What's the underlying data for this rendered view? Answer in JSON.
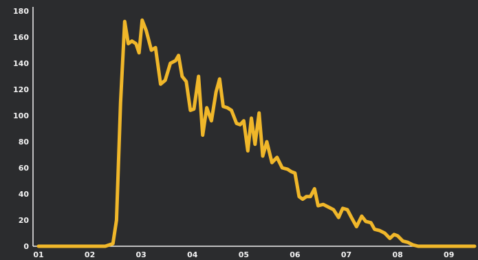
{
  "chart_data": {
    "type": "line",
    "title": "",
    "xlabel": "",
    "ylabel": "",
    "grid": false,
    "xlim": [
      1,
      9.5
    ],
    "ylim": [
      0,
      180
    ],
    "xticks": [
      {
        "value": 1,
        "label": "01"
      },
      {
        "value": 2,
        "label": "02"
      },
      {
        "value": 3,
        "label": "03"
      },
      {
        "value": 4,
        "label": "04"
      },
      {
        "value": 5,
        "label": "05"
      },
      {
        "value": 6,
        "label": "06"
      },
      {
        "value": 7,
        "label": "07"
      },
      {
        "value": 8,
        "label": "08"
      },
      {
        "value": 9,
        "label": "09"
      }
    ],
    "yticks": [
      {
        "value": 0,
        "label": "0"
      },
      {
        "value": 20,
        "label": "20"
      },
      {
        "value": 40,
        "label": "40"
      },
      {
        "value": 60,
        "label": "60"
      },
      {
        "value": 80,
        "label": "80"
      },
      {
        "value": 100,
        "label": "100"
      },
      {
        "value": 120,
        "label": "120"
      },
      {
        "value": 140,
        "label": "140"
      },
      {
        "value": 160,
        "label": "160"
      },
      {
        "value": 180,
        "label": "180"
      }
    ],
    "series": [
      {
        "color": "#f0b72a",
        "points": [
          [
            1.0,
            0
          ],
          [
            1.5,
            0
          ],
          [
            2.0,
            0
          ],
          [
            2.3,
            0
          ],
          [
            2.45,
            2
          ],
          [
            2.52,
            20
          ],
          [
            2.6,
            110
          ],
          [
            2.68,
            172
          ],
          [
            2.75,
            155
          ],
          [
            2.82,
            157
          ],
          [
            2.9,
            155
          ],
          [
            2.96,
            148
          ],
          [
            3.02,
            173
          ],
          [
            3.1,
            165
          ],
          [
            3.2,
            150
          ],
          [
            3.28,
            152
          ],
          [
            3.38,
            124
          ],
          [
            3.47,
            127
          ],
          [
            3.57,
            140
          ],
          [
            3.67,
            142
          ],
          [
            3.73,
            146
          ],
          [
            3.8,
            130
          ],
          [
            3.88,
            126
          ],
          [
            3.96,
            104
          ],
          [
            4.03,
            105
          ],
          [
            4.12,
            130
          ],
          [
            4.2,
            85
          ],
          [
            4.28,
            106
          ],
          [
            4.37,
            96
          ],
          [
            4.46,
            118
          ],
          [
            4.53,
            128
          ],
          [
            4.6,
            107
          ],
          [
            4.68,
            106
          ],
          [
            4.76,
            104
          ],
          [
            4.86,
            94
          ],
          [
            4.93,
            93
          ],
          [
            5.0,
            96
          ],
          [
            5.08,
            73
          ],
          [
            5.15,
            98
          ],
          [
            5.22,
            78
          ],
          [
            5.3,
            102
          ],
          [
            5.37,
            69
          ],
          [
            5.45,
            80
          ],
          [
            5.55,
            64
          ],
          [
            5.65,
            68
          ],
          [
            5.75,
            60
          ],
          [
            5.85,
            59
          ],
          [
            5.93,
            57
          ],
          [
            6.0,
            56
          ],
          [
            6.08,
            38
          ],
          [
            6.15,
            36
          ],
          [
            6.22,
            38
          ],
          [
            6.3,
            38
          ],
          [
            6.38,
            44
          ],
          [
            6.45,
            31
          ],
          [
            6.55,
            32
          ],
          [
            6.65,
            30
          ],
          [
            6.75,
            28
          ],
          [
            6.85,
            22
          ],
          [
            6.93,
            29
          ],
          [
            7.02,
            28
          ],
          [
            7.1,
            22
          ],
          [
            7.2,
            15
          ],
          [
            7.3,
            23
          ],
          [
            7.38,
            19
          ],
          [
            7.48,
            18
          ],
          [
            7.55,
            13
          ],
          [
            7.65,
            12
          ],
          [
            7.75,
            10
          ],
          [
            7.85,
            6
          ],
          [
            7.93,
            9
          ],
          [
            8.0,
            8
          ],
          [
            8.1,
            4
          ],
          [
            8.2,
            3
          ],
          [
            8.3,
            1
          ],
          [
            8.4,
            0
          ],
          [
            8.5,
            0
          ],
          [
            8.6,
            0
          ],
          [
            8.7,
            0
          ],
          [
            8.8,
            0
          ],
          [
            8.9,
            0
          ],
          [
            9.0,
            0
          ],
          [
            9.1,
            0
          ],
          [
            9.2,
            0
          ],
          [
            9.3,
            0
          ],
          [
            9.4,
            0
          ],
          [
            9.5,
            0
          ]
        ]
      }
    ]
  }
}
